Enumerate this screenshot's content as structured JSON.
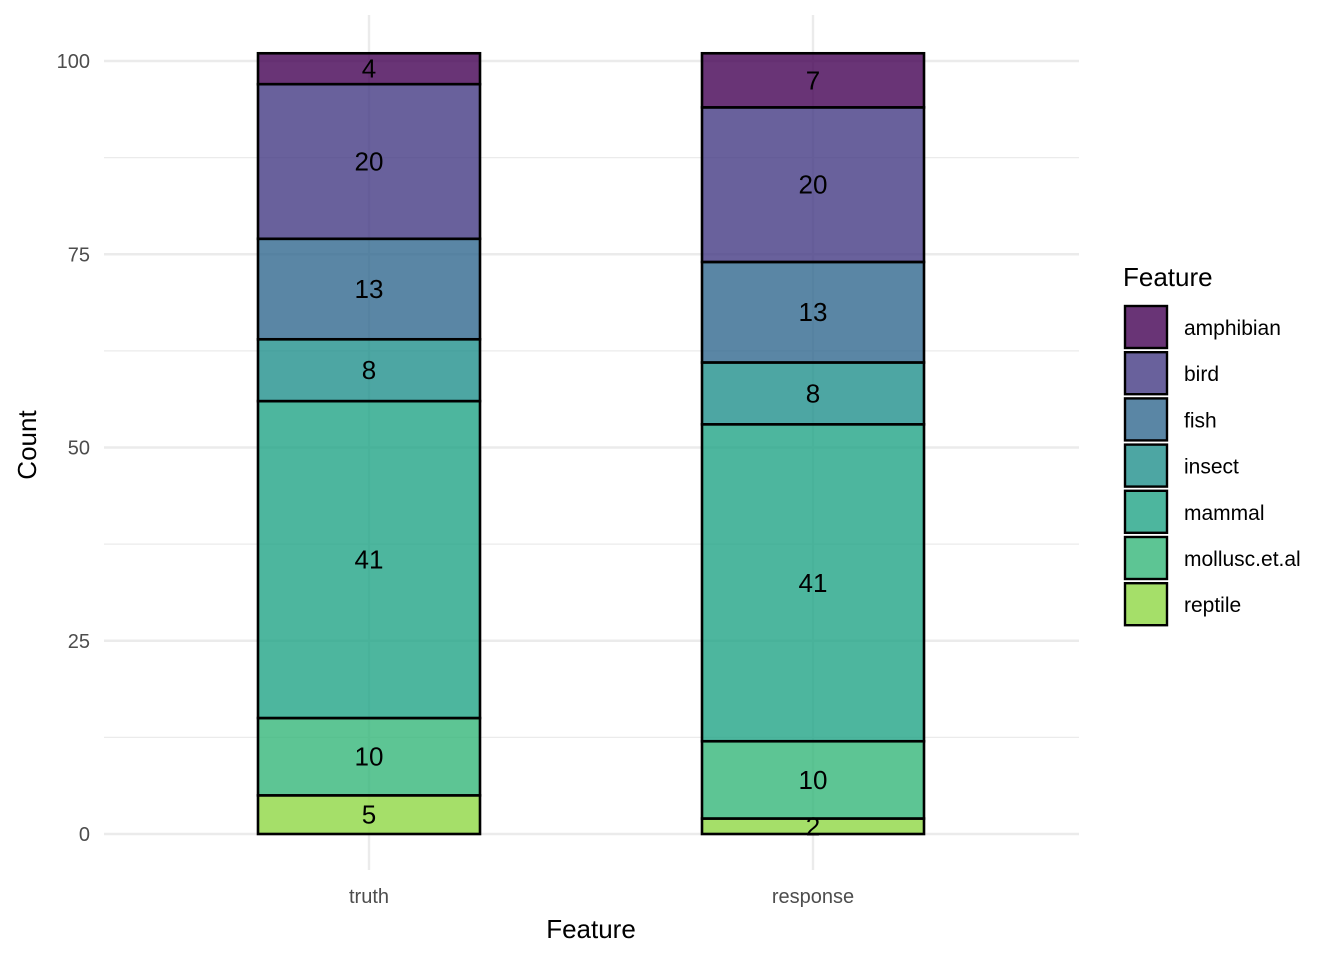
{
  "chart_data": {
    "type": "bar",
    "stacked": true,
    "categories": [
      "truth",
      "response"
    ],
    "series": [
      {
        "name": "amphibian",
        "color": "#440154",
        "values": [
          4,
          7
        ]
      },
      {
        "name": "bird",
        "color": "#443A83",
        "values": [
          20,
          20
        ]
      },
      {
        "name": "fish",
        "color": "#31688E",
        "values": [
          13,
          13
        ]
      },
      {
        "name": "insect",
        "color": "#21908C",
        "values": [
          8,
          8
        ]
      },
      {
        "name": "mammal",
        "color": "#20A486",
        "values": [
          41,
          41
        ]
      },
      {
        "name": "mollusc.et.al",
        "color": "#35B779",
        "values": [
          10,
          10
        ]
      },
      {
        "name": "reptile",
        "color": "#8FD744",
        "values": [
          5,
          2
        ]
      }
    ],
    "xlabel": "Feature",
    "ylabel": "Count",
    "ylim": [
      0,
      101
    ],
    "yticks": [
      0,
      25,
      50,
      75,
      100
    ],
    "grid": true,
    "legend": {
      "title": "Feature",
      "position": "right"
    }
  }
}
